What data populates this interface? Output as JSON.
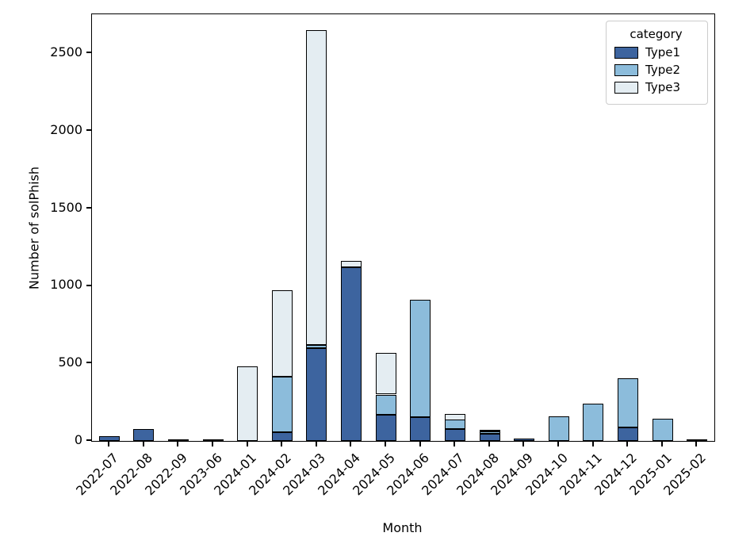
{
  "chart_data": {
    "type": "bar",
    "stacked": true,
    "title": "",
    "xlabel": "Month",
    "ylabel": "Number of solPhish",
    "ylim": [
      0,
      2750
    ],
    "yticks": [
      0,
      500,
      1000,
      1500,
      2000,
      2500
    ],
    "grid": false,
    "bar_edge_color": "#000000",
    "categories": [
      "2022-07",
      "2022-08",
      "2022-09",
      "2023-06",
      "2024-01",
      "2024-02",
      "2024-03",
      "2024-04",
      "2024-05",
      "2024-06",
      "2024-07",
      "2024-08",
      "2024-09",
      "2024-10",
      "2024-11",
      "2024-12",
      "2025-01",
      "2025-02"
    ],
    "series": [
      {
        "name": "Type1",
        "color": "#3d649f",
        "values": [
          30,
          75,
          10,
          5,
          0,
          55,
          600,
          1120,
          170,
          155,
          75,
          45,
          15,
          0,
          0,
          85,
          0,
          5
        ]
      },
      {
        "name": "Type2",
        "color": "#8cbcdb",
        "values": [
          0,
          0,
          0,
          0,
          0,
          360,
          20,
          0,
          130,
          755,
          60,
          15,
          0,
          160,
          240,
          315,
          145,
          0
        ]
      },
      {
        "name": "Type3",
        "color": "#e4edf2",
        "values": [
          0,
          0,
          0,
          0,
          480,
          555,
          2030,
          40,
          265,
          0,
          40,
          10,
          0,
          0,
          0,
          0,
          0,
          0
        ]
      }
    ],
    "legend": {
      "title": "category",
      "position": "upper right"
    }
  }
}
